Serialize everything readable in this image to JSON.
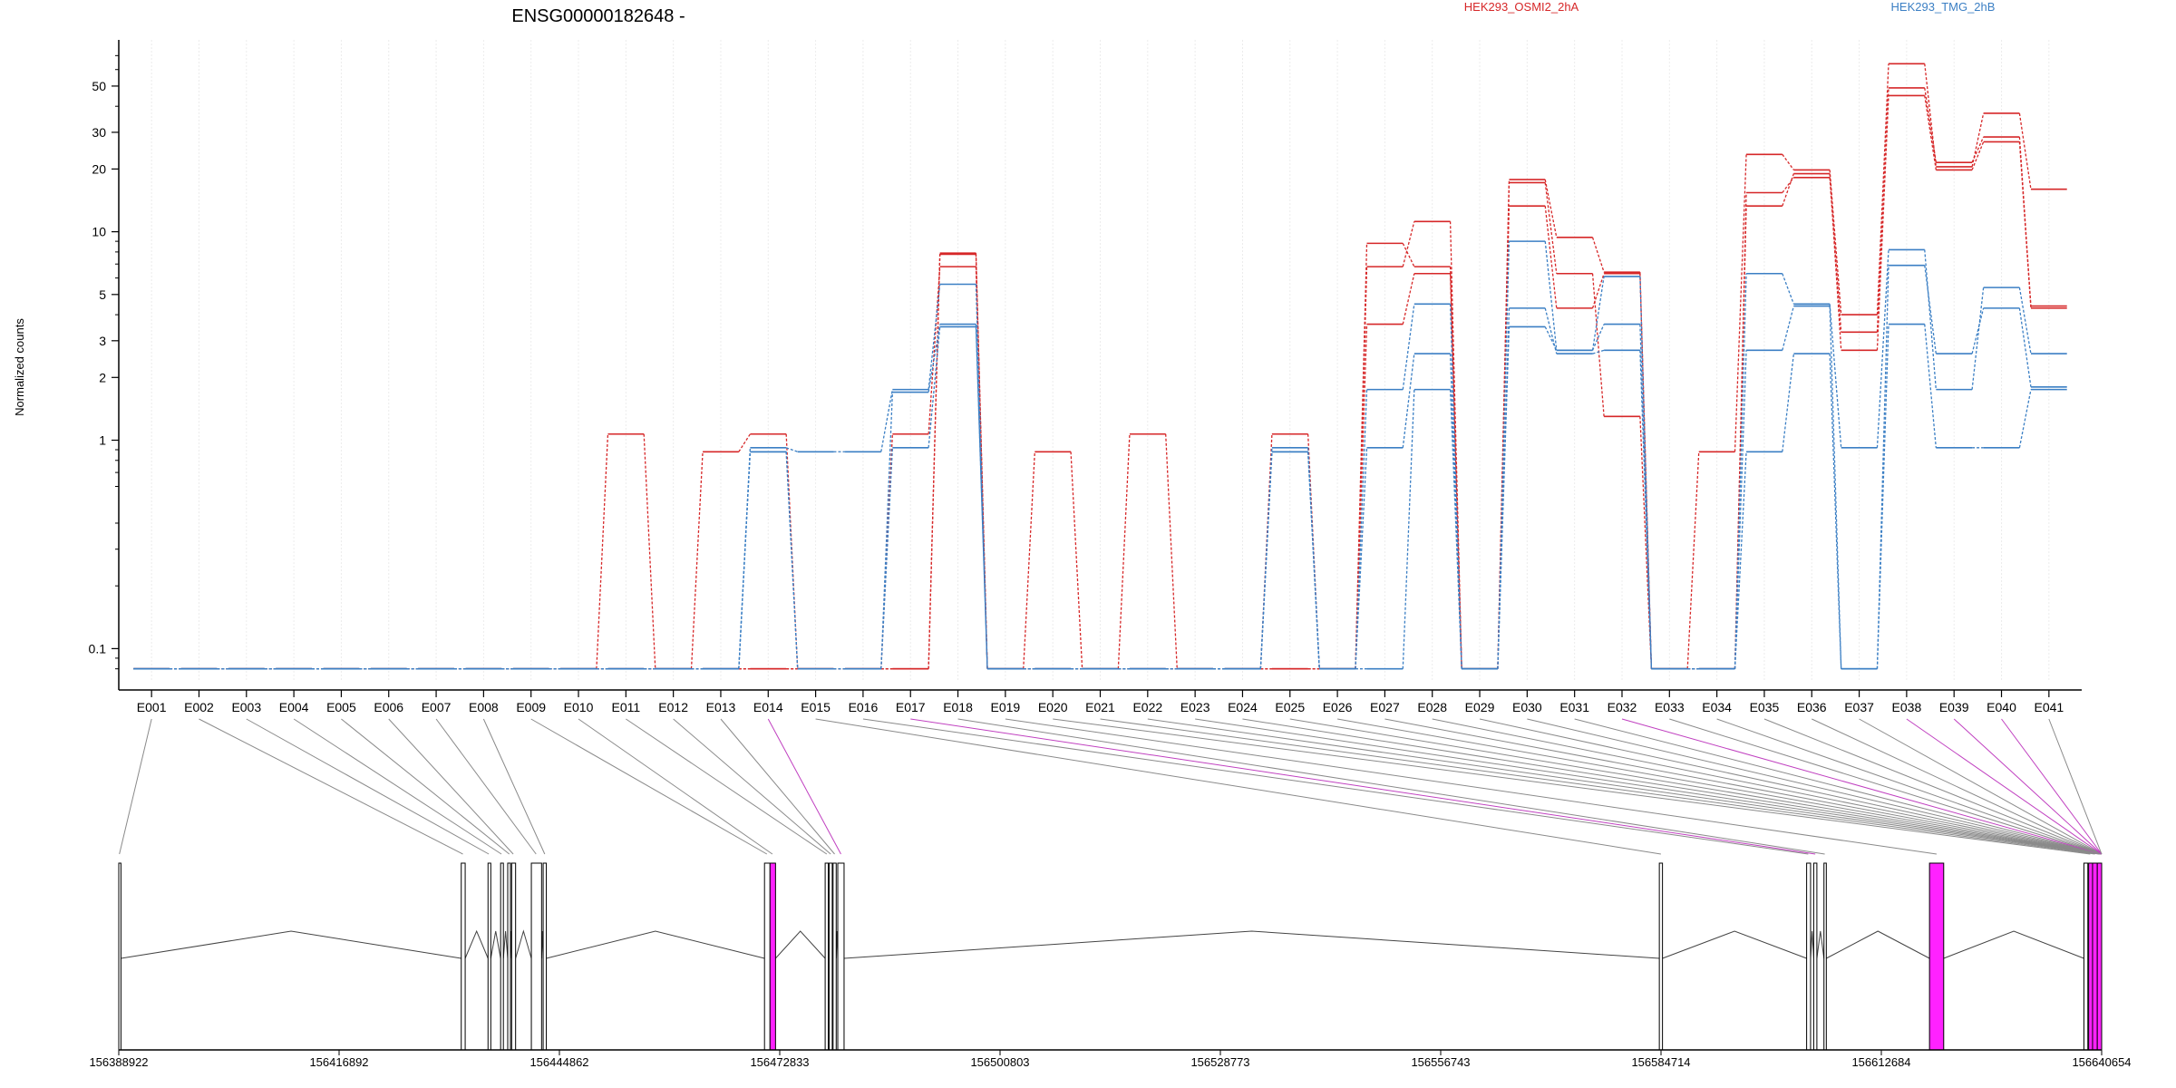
{
  "chart_data": {
    "type": "line",
    "title": "ENSG00000182648 -",
    "ylabel": "Normalized counts",
    "yscale": "log",
    "ylim": [
      0.07,
      80
    ],
    "yticks": [
      {
        "v": 0.1,
        "label": "0.1"
      },
      {
        "v": 1,
        "label": "1"
      },
      {
        "v": 2,
        "label": "2"
      },
      {
        "v": 3,
        "label": "3"
      },
      {
        "v": 5,
        "label": "5"
      },
      {
        "v": 10,
        "label": "10"
      },
      {
        "v": 20,
        "label": "20"
      },
      {
        "v": 30,
        "label": "30"
      },
      {
        "v": 50,
        "label": "50"
      }
    ],
    "categories": [
      "E001",
      "E002",
      "E003",
      "E004",
      "E005",
      "E006",
      "E007",
      "E008",
      "E009",
      "E010",
      "E011",
      "E012",
      "E013",
      "E014",
      "E015",
      "E016",
      "E017",
      "E018",
      "E019",
      "E020",
      "E021",
      "E022",
      "E023",
      "E024",
      "E025",
      "E026",
      "E027",
      "E028",
      "E029",
      "E030",
      "E031",
      "E032",
      "E033",
      "E034",
      "E035",
      "E036",
      "E037",
      "E038",
      "E039",
      "E040",
      "E041"
    ],
    "highlighted_exons": [
      "E014",
      "E017",
      "E032",
      "E038",
      "E039",
      "E040"
    ],
    "legend": [
      {
        "name": "HEK293_OSMI2_2hA",
        "color": "#d62728"
      },
      {
        "name": "HEK293_TMG_2hB",
        "color": "#3b7fc4"
      }
    ],
    "series": [
      {
        "group": "HEK293_OSMI2_2hA",
        "color": "#d62728",
        "values": [
          0.08,
          0.08,
          0.08,
          0.08,
          0.08,
          0.08,
          0.08,
          0.08,
          0.08,
          0.08,
          1.07,
          0.08,
          0.88,
          1.07,
          0.08,
          0.08,
          0.08,
          7.9,
          0.08,
          0.88,
          0.08,
          1.07,
          0.08,
          0.08,
          1.07,
          0.08,
          8.8,
          6.8,
          0.08,
          17.8,
          9.4,
          6.4,
          0.08,
          0.88,
          23.5,
          19.8,
          4.0,
          64,
          20.5,
          37,
          16
        ]
      },
      {
        "group": "HEK293_OSMI2_2hA",
        "color": "#d62728",
        "values": [
          0.08,
          0.08,
          0.08,
          0.08,
          0.08,
          0.08,
          0.08,
          0.08,
          0.08,
          0.08,
          0.08,
          0.08,
          0.08,
          0.08,
          0.08,
          0.08,
          1.07,
          6.8,
          0.08,
          0.08,
          0.08,
          0.08,
          0.08,
          0.08,
          0.08,
          0.08,
          6.8,
          11.2,
          0.08,
          17.2,
          6.3,
          1.3,
          0.08,
          0.08,
          15.4,
          18.2,
          3.3,
          49,
          21.5,
          28.5,
          4.4
        ]
      },
      {
        "group": "HEK293_OSMI2_2hA",
        "color": "#d62728",
        "values": [
          0.08,
          0.08,
          0.08,
          0.08,
          0.08,
          0.08,
          0.08,
          0.08,
          0.08,
          0.08,
          0.08,
          0.08,
          0.08,
          0.08,
          0.08,
          0.08,
          0.08,
          7.8,
          0.08,
          0.08,
          0.08,
          0.08,
          0.08,
          0.08,
          0.08,
          0.08,
          3.6,
          6.3,
          0.08,
          13.3,
          4.3,
          6.3,
          0.08,
          0.08,
          13.3,
          19.0,
          2.7,
          45,
          19.8,
          27,
          4.3
        ]
      },
      {
        "group": "HEK293_TMG_2hB",
        "color": "#3b7fc4",
        "values": [
          0.08,
          0.08,
          0.08,
          0.08,
          0.08,
          0.08,
          0.08,
          0.08,
          0.08,
          0.08,
          0.08,
          0.08,
          0.08,
          0.92,
          0.88,
          0.88,
          1.75,
          5.6,
          0.08,
          0.08,
          0.08,
          0.08,
          0.08,
          0.08,
          0.92,
          0.08,
          1.75,
          4.5,
          0.08,
          9.0,
          2.7,
          3.6,
          0.08,
          0.08,
          6.3,
          4.5,
          0.92,
          8.2,
          1.75,
          5.4,
          2.6
        ]
      },
      {
        "group": "HEK293_TMG_2hB",
        "color": "#3b7fc4",
        "values": [
          0.08,
          0.08,
          0.08,
          0.08,
          0.08,
          0.08,
          0.08,
          0.08,
          0.08,
          0.08,
          0.08,
          0.08,
          0.08,
          0.88,
          0.08,
          0.08,
          1.7,
          3.6,
          0.08,
          0.08,
          0.08,
          0.08,
          0.08,
          0.08,
          0.88,
          0.08,
          0.92,
          2.6,
          0.08,
          4.3,
          2.6,
          2.7,
          0.08,
          0.08,
          2.7,
          4.4,
          0.08,
          6.9,
          2.6,
          4.3,
          1.8
        ]
      },
      {
        "group": "HEK293_TMG_2hB",
        "color": "#3b7fc4",
        "values": [
          0.08,
          0.08,
          0.08,
          0.08,
          0.08,
          0.08,
          0.08,
          0.08,
          0.08,
          0.08,
          0.08,
          0.08,
          0.08,
          0.88,
          0.08,
          0.08,
          0.92,
          3.5,
          0.08,
          0.08,
          0.08,
          0.08,
          0.08,
          0.08,
          0.88,
          0.08,
          0.08,
          1.75,
          0.08,
          3.5,
          2.7,
          6.1,
          0.08,
          0.08,
          0.88,
          2.6,
          0.08,
          3.6,
          0.92,
          0.92,
          1.75
        ]
      }
    ],
    "genome_axis": {
      "ticks": [
        "156388922",
        "156416892",
        "156444862",
        "156472833",
        "156500803",
        "156528773",
        "156556743",
        "156584714",
        "156612684",
        "156640654"
      ],
      "start": 156388922,
      "end": 156640654
    },
    "exons": [
      {
        "start": 156388922,
        "end": 156389200
      },
      {
        "start": 156432400,
        "end": 156432900
      },
      {
        "start": 156435800,
        "end": 156436150
      },
      {
        "start": 156437400,
        "end": 156437750
      },
      {
        "start": 156438300,
        "end": 156438650
      },
      {
        "start": 156438800,
        "end": 156439300
      },
      {
        "start": 156441300,
        "end": 156442600
      },
      {
        "start": 156442800,
        "end": 156443200
      },
      {
        "start": 156470900,
        "end": 156471600
      },
      {
        "start": 156471600,
        "end": 156472300,
        "highlight": true
      },
      {
        "start": 156478600,
        "end": 156479000
      },
      {
        "start": 156479100,
        "end": 156479500
      },
      {
        "start": 156479600,
        "end": 156480000
      },
      {
        "start": 156480200,
        "end": 156481000
      },
      {
        "start": 156584500,
        "end": 156584900
      },
      {
        "start": 156603200,
        "end": 156603700
      },
      {
        "start": 156604100,
        "end": 156604500
      },
      {
        "start": 156605400,
        "end": 156605700
      },
      {
        "start": 156618800,
        "end": 156620600,
        "highlight": true
      },
      {
        "start": 156638400,
        "end": 156638900
      },
      {
        "start": 156639000,
        "end": 156639500,
        "highlight": true
      },
      {
        "start": 156639500,
        "end": 156640100,
        "highlight": true
      },
      {
        "start": 156640100,
        "end": 156640654,
        "highlight": true
      }
    ],
    "exon_map": [
      156389000,
      156432600,
      156435900,
      156437500,
      156438500,
      156439000,
      156441900,
      156443000,
      156471200,
      156471900,
      156478800,
      156479300,
      156479800,
      156480600,
      156584700,
      156603400,
      156604300,
      156605500,
      156619700,
      156639200,
      156639800,
      156640300,
      156640500,
      156640550,
      156640580,
      156640600,
      156640620,
      156640630,
      156640640,
      156640645,
      156640650,
      156640652,
      156640653,
      156640654,
      156640654,
      156640654,
      156640654,
      156640654,
      156640654,
      156640654,
      156640654
    ]
  }
}
